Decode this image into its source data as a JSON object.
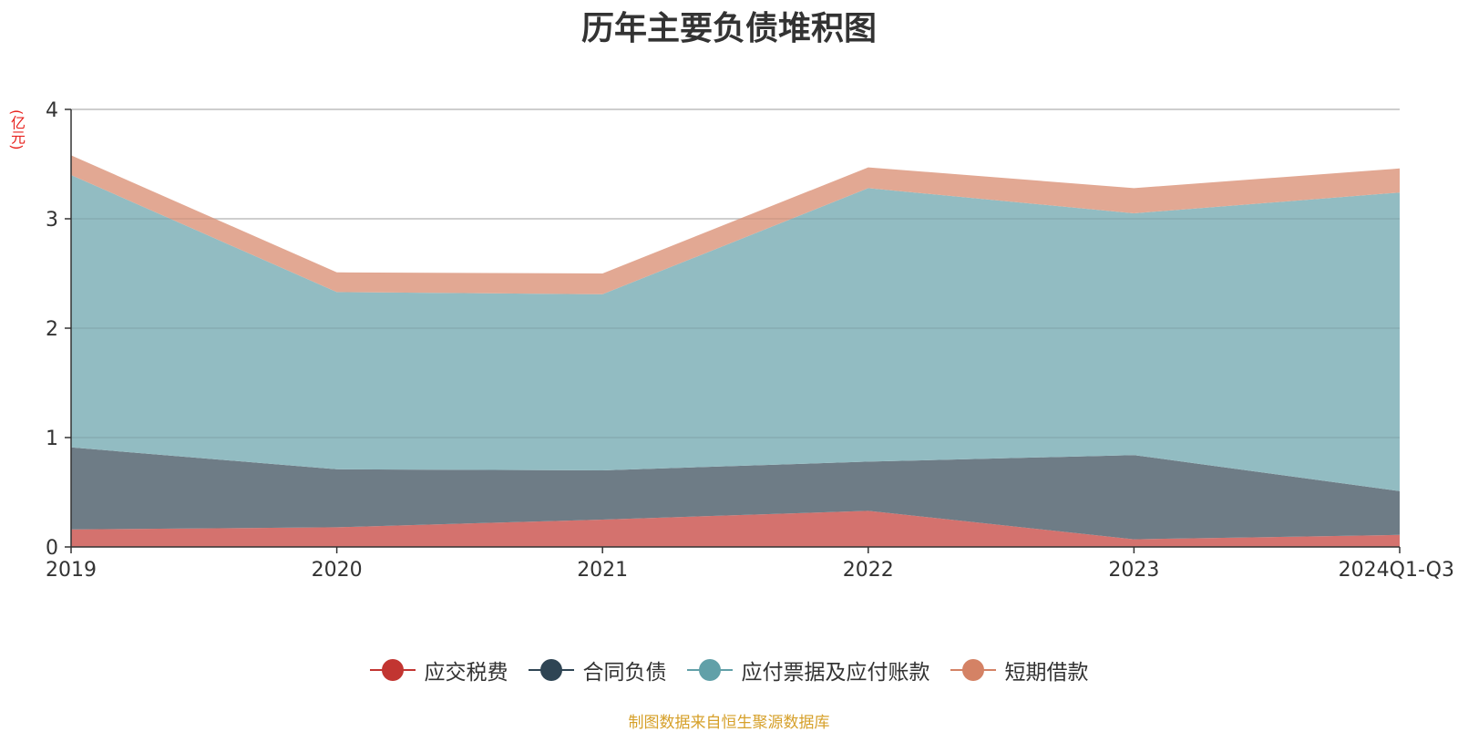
{
  "title": "历年主要负债堆积图",
  "unit": "(亿元)",
  "source": "制图数据来自恒生聚源数据库",
  "chart_data": {
    "type": "area",
    "stacked": true,
    "title": "历年主要负债堆积图",
    "ylabel": "(亿元)",
    "xlabel": "",
    "categories": [
      "2019",
      "2020",
      "2021",
      "2022",
      "2023",
      "2024Q1-Q3"
    ],
    "ylim": [
      0,
      4
    ],
    "yticks": [
      0,
      1,
      2,
      3,
      4
    ],
    "grid": true,
    "legend_position": "bottom",
    "series": [
      {
        "name": "应交税费",
        "color": "#c23531",
        "fill": "#d4726e",
        "values": [
          0.16,
          0.18,
          0.25,
          0.33,
          0.07,
          0.11
        ]
      },
      {
        "name": "合同负债",
        "color": "#2f4554",
        "fill": "#6e7c86",
        "values": [
          0.75,
          0.53,
          0.45,
          0.45,
          0.77,
          0.4
        ]
      },
      {
        "name": "应付票据及应付账款",
        "color": "#61a0a8",
        "fill": "#92bcc2",
        "values": [
          2.49,
          1.62,
          1.61,
          2.5,
          2.21,
          2.73
        ]
      },
      {
        "name": "短期借款",
        "color": "#d48265",
        "fill": "#e2a893",
        "values": [
          0.18,
          0.18,
          0.19,
          0.19,
          0.23,
          0.22
        ]
      }
    ]
  }
}
